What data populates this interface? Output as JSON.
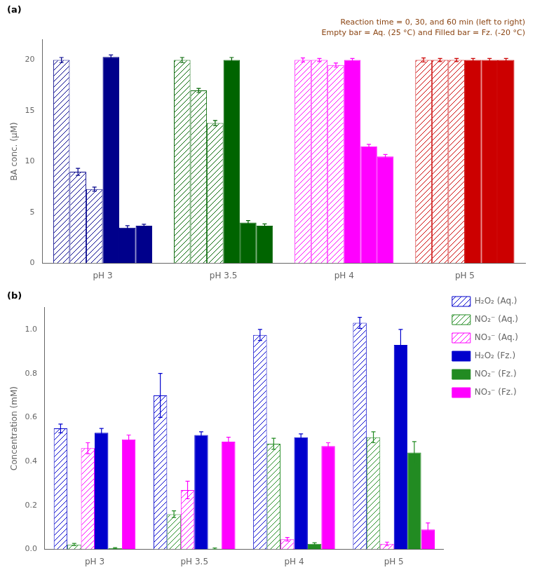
{
  "chart_data": [
    {
      "type": "bar",
      "title": "(a)",
      "annotations": [
        {
          "text": "Reaction time = 0, 30, and 60 min (left to right)",
          "color": "#8B4513"
        },
        {
          "text": "Empty bar = Aq. (25 °C) and Filled bar = Fz. (-20 °C)",
          "color": "#8B4513"
        }
      ],
      "y_label": "BA conc. (μM)",
      "categories": [
        "pH 3",
        "pH 3.5",
        "pH 4",
        "pH 5"
      ],
      "series": [
        {
          "values": [
            20.0,
            20.0,
            20.0,
            20.0
          ],
          "errors": [
            0.25,
            0.25,
            0.2,
            0.2
          ],
          "colors": [
            "#00008B",
            "#006400",
            "#FF00FF",
            "#CC0000"
          ]
        },
        {
          "values": [
            9.0,
            17.0,
            20.0,
            20.0
          ],
          "errors": [
            0.35,
            0.2,
            0.15,
            0.15
          ],
          "colors": [
            "#00008B",
            "#006400",
            "#FF00FF",
            "#CC0000"
          ]
        },
        {
          "values": [
            7.3,
            13.8,
            19.5,
            20.0
          ],
          "errors": [
            0.2,
            0.25,
            0.2,
            0.15
          ],
          "colors": [
            "#00008B",
            "#006400",
            "#FF00FF",
            "#CC0000"
          ]
        },
        {
          "values": [
            20.3,
            20.0,
            20.0,
            20.0
          ],
          "errors": [
            0.2,
            0.25,
            0.15,
            0.15
          ],
          "colors": [
            "#00008B",
            "#006400",
            "#FF00FF",
            "#CC0000"
          ]
        },
        {
          "values": [
            3.5,
            4.0,
            11.5,
            20.0
          ],
          "errors": [
            0.2,
            0.2,
            0.2,
            0.15
          ],
          "colors": [
            "#00008B",
            "#006400",
            "#FF00FF",
            "#CC0000"
          ]
        },
        {
          "values": [
            3.7,
            3.7,
            10.5,
            20.0
          ],
          "errors": [
            0.15,
            0.18,
            0.2,
            0.15
          ],
          "colors": [
            "#00008B",
            "#006400",
            "#FF00FF",
            "#CC0000"
          ]
        }
      ],
      "ylim": [
        0,
        22
      ],
      "yticks": [
        0,
        5,
        10,
        15,
        20
      ],
      "grid": false
    },
    {
      "type": "bar",
      "title": "(b)",
      "y_label": "Concentration (mM)",
      "categories": [
        "pH 3",
        "pH 3.5",
        "pH 4",
        "pH 5"
      ],
      "series": [
        {
          "name": "H₂O₂ (Aq.)",
          "color": "#0000CD",
          "values": [
            0.55,
            0.7,
            0.975,
            1.03
          ],
          "errors": [
            0.02,
            0.1,
            0.025,
            0.025
          ]
        },
        {
          "name": "NO₂⁻ (Aq.)",
          "color": "#228B22",
          "values": [
            0.022,
            0.16,
            0.48,
            0.51
          ],
          "errors": [
            0.005,
            0.015,
            0.025,
            0.025
          ]
        },
        {
          "name": "NO₃⁻ (Aq.)",
          "color": "#FF00FF",
          "values": [
            0.46,
            0.27,
            0.046,
            0.025
          ],
          "errors": [
            0.025,
            0.04,
            0.008,
            0.008
          ]
        },
        {
          "name": "H₂O₂ (Fz.)",
          "color": "#0000CD",
          "values": [
            0.53,
            0.52,
            0.51,
            0.93
          ],
          "errors": [
            0.02,
            0.015,
            0.015,
            0.07
          ]
        },
        {
          "name": "NO₂⁻ (Fz.)",
          "color": "#228B22",
          "values": [
            0.005,
            0.003,
            0.025,
            0.44
          ],
          "errors": [
            0.003,
            0.003,
            0.005,
            0.05
          ]
        },
        {
          "name": "NO₃⁻ (Fz.)",
          "color": "#FF00FF",
          "values": [
            0.5,
            0.49,
            0.47,
            0.09
          ],
          "errors": [
            0.02,
            0.02,
            0.015,
            0.03
          ]
        }
      ],
      "ylim": [
        0,
        1.1
      ],
      "yticks": [
        {
          "value": 0.0,
          "label": "0.0"
        },
        {
          "value": 0.2,
          "label": "0.2"
        },
        {
          "value": 0.4,
          "label": "0.4"
        },
        {
          "value": 0.6,
          "label": "0.6"
        },
        {
          "value": 0.8,
          "label": "0.8"
        },
        {
          "value": 1.0,
          "label": "1.0"
        }
      ],
      "grid": false,
      "legend": "right"
    }
  ]
}
